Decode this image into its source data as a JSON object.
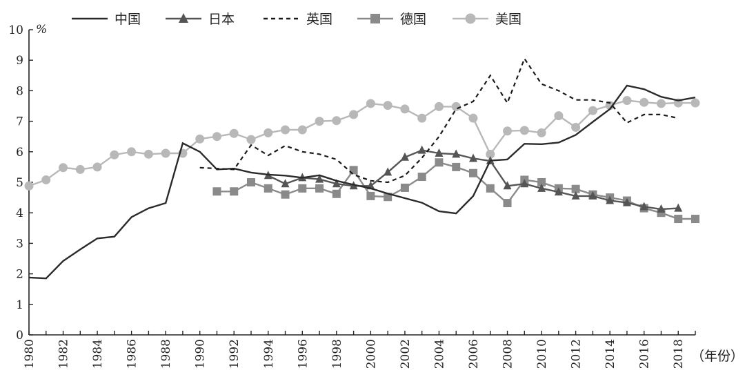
{
  "chart_data": {
    "type": "line",
    "title": "",
    "ylabel": "%",
    "xlabel": "（年份）",
    "ylim": [
      0,
      10
    ],
    "xlim": [
      1980,
      2019
    ],
    "yticks": [
      0,
      1,
      2,
      3,
      4,
      5,
      6,
      7,
      8,
      9,
      10
    ],
    "xticks": [
      1980,
      1982,
      1984,
      1986,
      1988,
      1990,
      1992,
      1994,
      1996,
      1998,
      2000,
      2002,
      2004,
      2006,
      2008,
      2010,
      2012,
      2014,
      2016,
      2018
    ],
    "grid": false,
    "legend_position": "top",
    "series": [
      {
        "name": "中国",
        "color": "#2a2a2a",
        "dash": "solid",
        "marker": "none",
        "x": [
          1980,
          1981,
          1982,
          1983,
          1984,
          1985,
          1986,
          1987,
          1988,
          1989,
          1990,
          1991,
          1992,
          1993,
          1994,
          1995,
          1996,
          1997,
          1998,
          1999,
          2000,
          2001,
          2002,
          2003,
          2004,
          2005,
          2006,
          2007,
          2008,
          2009,
          2010,
          2011,
          2012,
          2013,
          2014,
          2015,
          2016,
          2017,
          2018,
          2019
        ],
        "y": [
          1.88,
          1.85,
          2.42,
          2.8,
          3.16,
          3.22,
          3.86,
          4.15,
          4.32,
          6.28,
          6.0,
          5.42,
          5.45,
          5.32,
          5.25,
          5.22,
          5.15,
          5.23,
          5.05,
          4.92,
          4.8,
          4.63,
          4.48,
          4.33,
          4.05,
          3.98,
          4.55,
          5.71,
          5.75,
          6.26,
          6.25,
          6.3,
          6.55,
          6.98,
          7.4,
          8.17,
          8.05,
          7.8,
          7.68,
          7.78
        ]
      },
      {
        "name": "日本",
        "color": "#555555",
        "dash": "solid",
        "marker": "triangle",
        "x": [
          1994,
          1995,
          1996,
          1997,
          1998,
          1999,
          2000,
          2001,
          2002,
          2003,
          2004,
          2005,
          2006,
          2007,
          2008,
          2009,
          2010,
          2011,
          2012,
          2013,
          2014,
          2015,
          2016,
          2017,
          2018
        ],
        "y": [
          5.22,
          4.95,
          5.15,
          5.1,
          4.95,
          4.88,
          4.88,
          5.33,
          5.82,
          6.05,
          5.95,
          5.92,
          5.78,
          5.7,
          4.88,
          4.95,
          4.8,
          4.68,
          4.55,
          4.55,
          4.4,
          4.33,
          4.2,
          4.12,
          4.15
        ]
      },
      {
        "name": "英国",
        "color": "#1a1a1a",
        "dash": "dashed",
        "marker": "none",
        "x": [
          1990,
          1991,
          1992,
          1993,
          1994,
          1995,
          1996,
          1997,
          1998,
          1999,
          2000,
          2001,
          2002,
          2003,
          2004,
          2005,
          2006,
          2007,
          2008,
          2009,
          2010,
          2011,
          2012,
          2013,
          2014,
          2015,
          2016,
          2017,
          2018
        ],
        "y": [
          5.48,
          5.45,
          5.42,
          6.22,
          5.88,
          6.2,
          6.0,
          5.92,
          5.75,
          5.25,
          5.05,
          5.0,
          5.22,
          5.8,
          6.5,
          7.4,
          7.65,
          8.5,
          7.6,
          9.05,
          8.22,
          8.0,
          7.7,
          7.7,
          7.6,
          6.95,
          7.22,
          7.22,
          7.1
        ]
      },
      {
        "name": "德国",
        "color": "#8a8a8a",
        "dash": "solid",
        "marker": "square",
        "x": [
          1991,
          1992,
          1993,
          1994,
          1995,
          1996,
          1997,
          1998,
          1999,
          2000,
          2001,
          2002,
          2003,
          2004,
          2005,
          2006,
          2007,
          2008,
          2009,
          2010,
          2011,
          2012,
          2013,
          2014,
          2015,
          2016,
          2017,
          2018,
          2019
        ],
        "y": [
          4.7,
          4.7,
          5.0,
          4.8,
          4.6,
          4.8,
          4.8,
          4.62,
          5.4,
          4.55,
          4.52,
          4.82,
          5.18,
          5.65,
          5.5,
          5.3,
          4.8,
          4.32,
          5.08,
          5.0,
          4.8,
          4.78,
          4.6,
          4.5,
          4.4,
          4.15,
          4.0,
          3.8,
          3.8
        ]
      },
      {
        "name": "美国",
        "color": "#b8b8b8",
        "dash": "solid",
        "marker": "circle",
        "x": [
          1980,
          1981,
          1982,
          1983,
          1984,
          1985,
          1986,
          1987,
          1988,
          1989,
          1990,
          1991,
          1992,
          1993,
          1994,
          1995,
          1996,
          1997,
          1998,
          1999,
          2000,
          2001,
          2002,
          2003,
          2004,
          2005,
          2006,
          2007,
          2008,
          2009,
          2010,
          2011,
          2012,
          2013,
          2014,
          2015,
          2016,
          2017,
          2018,
          2019
        ],
        "y": [
          4.88,
          5.08,
          5.48,
          5.42,
          5.5,
          5.9,
          6.0,
          5.92,
          5.95,
          5.95,
          6.42,
          6.5,
          6.6,
          6.4,
          6.62,
          6.72,
          6.72,
          7.0,
          7.02,
          7.22,
          7.58,
          7.52,
          7.4,
          7.1,
          7.48,
          7.48,
          7.1,
          5.92,
          6.68,
          6.7,
          6.62,
          7.18,
          6.8,
          7.35,
          7.52,
          7.68,
          7.62,
          7.58,
          7.6,
          7.6
        ]
      }
    ]
  }
}
